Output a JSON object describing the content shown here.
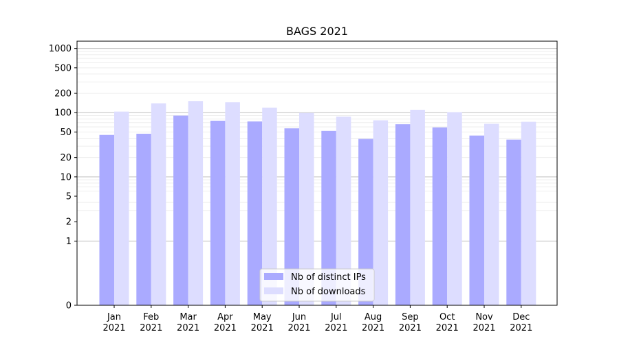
{
  "chart_data": {
    "type": "bar",
    "title": "BAGS 2021",
    "xlabel": "",
    "ylabel": "",
    "yscale": "symlog",
    "ylim": [
      0,
      1300
    ],
    "y_ticks": [
      0,
      1,
      2,
      5,
      10,
      20,
      50,
      100,
      200,
      500,
      1000
    ],
    "y_tick_labels": [
      "0",
      "1",
      "2",
      "5",
      "10",
      "20",
      "50",
      "100",
      "200",
      "500",
      "1000"
    ],
    "grid": "y",
    "legend_position": "bottom-center",
    "categories": [
      {
        "month": "Jan",
        "year": "2021"
      },
      {
        "month": "Feb",
        "year": "2021"
      },
      {
        "month": "Mar",
        "year": "2021"
      },
      {
        "month": "Apr",
        "year": "2021"
      },
      {
        "month": "May",
        "year": "2021"
      },
      {
        "month": "Jun",
        "year": "2021"
      },
      {
        "month": "Jul",
        "year": "2021"
      },
      {
        "month": "Aug",
        "year": "2021"
      },
      {
        "month": "Sep",
        "year": "2021"
      },
      {
        "month": "Oct",
        "year": "2021"
      },
      {
        "month": "Nov",
        "year": "2021"
      },
      {
        "month": "Dec",
        "year": "2021"
      }
    ],
    "series": [
      {
        "name": "Nb of distinct IPs",
        "color": "#aaaaff",
        "values": [
          45,
          47,
          90,
          75,
          73,
          57,
          52,
          39,
          66,
          59,
          44,
          38
        ]
      },
      {
        "name": "Nb of downloads",
        "color": "#ddddff",
        "values": [
          104,
          140,
          152,
          145,
          120,
          99,
          87,
          76,
          111,
          102,
          67,
          72
        ]
      }
    ]
  }
}
